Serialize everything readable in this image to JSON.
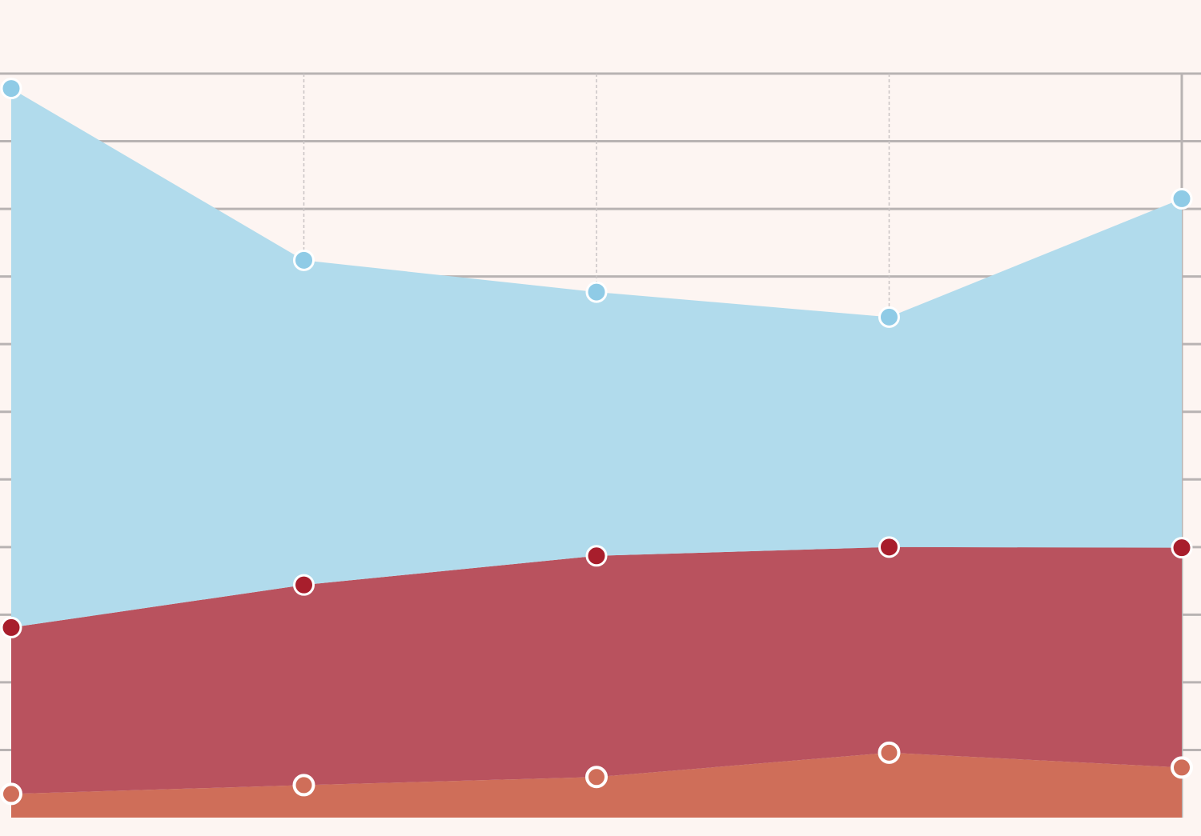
{
  "chart_data": {
    "type": "area",
    "stacked": true,
    "x": [
      0,
      1,
      2,
      3,
      4
    ],
    "ylim": [
      0,
      11
    ],
    "y_gridlines": [
      1,
      2,
      3,
      4,
      5,
      6,
      7,
      8,
      9,
      10,
      11
    ],
    "grid": true,
    "series": [
      {
        "values": [
          0.35,
          0.48,
          0.6,
          0.96,
          0.74
        ],
        "color": "#cf6e59",
        "marker_style": "hollow"
      },
      {
        "values": [
          2.46,
          2.96,
          3.27,
          3.04,
          3.25
        ],
        "color": "#b9525e",
        "marker_style": "filled",
        "marker_color": "#a81e2c"
      },
      {
        "values": [
          7.97,
          4.8,
          3.9,
          3.4,
          5.16
        ],
        "color": "#b1dbec",
        "marker_style": "filled",
        "marker_color": "#8fcbe6"
      }
    ]
  }
}
